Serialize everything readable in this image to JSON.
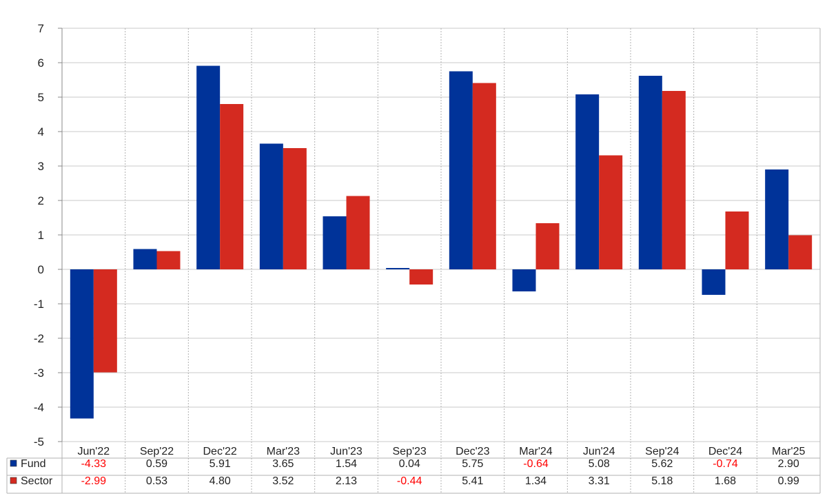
{
  "colors": {
    "fund": "#003399",
    "sector": "#d42a20",
    "negative_text": "#ff0000",
    "positive_text": "#222222",
    "grid": "#c8c8c8",
    "axis": "#888888"
  },
  "table": {
    "row_labels": [
      "Fund",
      "Sector"
    ]
  },
  "chart_data": {
    "type": "bar",
    "categories": [
      "Jun'22",
      "Sep'22",
      "Dec'22",
      "Mar'23",
      "Jun'23",
      "Sep'23",
      "Dec'23",
      "Mar'24",
      "Jun'24",
      "Sep'24",
      "Dec'24",
      "Mar'25"
    ],
    "series": [
      {
        "name": "Fund",
        "values": [
          -4.33,
          0.59,
          5.91,
          3.65,
          1.54,
          0.04,
          5.75,
          -0.64,
          5.08,
          5.62,
          -0.74,
          2.9
        ],
        "display": [
          "-4.33",
          "0.59",
          "5.91",
          "3.65",
          "1.54",
          "0.04",
          "5.75",
          "-0.64",
          "5.08",
          "5.62",
          "-0.74",
          "2.90"
        ]
      },
      {
        "name": "Sector",
        "values": [
          -2.99,
          0.53,
          4.8,
          3.52,
          2.13,
          -0.44,
          5.41,
          1.34,
          3.31,
          5.18,
          1.68,
          0.99
        ],
        "display": [
          "-2.99",
          "0.53",
          "4.80",
          "3.52",
          "2.13",
          "-0.44",
          "5.41",
          "1.34",
          "3.31",
          "5.18",
          "1.68",
          "0.99"
        ]
      }
    ],
    "ylim": [
      -5,
      7
    ],
    "yticks": [
      "7",
      "6",
      "5",
      "4",
      "3",
      "2",
      "1",
      "0",
      "-1",
      "-2",
      "-3",
      "-4",
      "-5"
    ],
    "grid": true,
    "legend": "data-table-left",
    "title": "",
    "xlabel": "",
    "ylabel": ""
  }
}
